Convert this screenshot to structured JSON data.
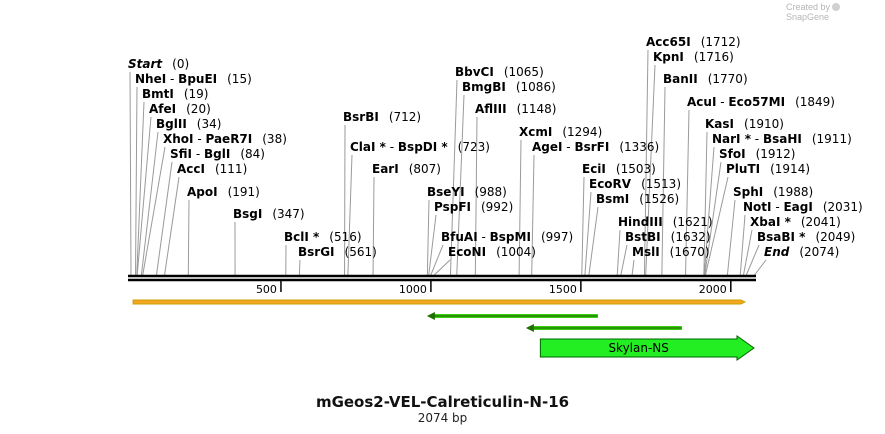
{
  "credit": {
    "created_by": "Created by",
    "brand": "SnapGene"
  },
  "title": "mGeos2-VEL-Calreticulin-N-16",
  "length_label": "2074 bp",
  "sequence_length": 2074,
  "ruler_ticks": [
    "500",
    "1000",
    "1500",
    "2000"
  ],
  "ruler_tick_values": [
    500,
    1000,
    1500,
    2000
  ],
  "colors": {
    "backbone": "#000000",
    "orf_outline": "#c8a000",
    "orf_fill": "#f5a623",
    "primer_fill": "#38d010",
    "primer_line": "#207000",
    "feature_fill": "#22ee22",
    "feature_outline": "#006400"
  },
  "enzymes": [
    {
      "name": "Start",
      "pos": "(0)",
      "site": 0,
      "italic": true
    },
    {
      "name": "NheI",
      "name2": "BpuEI",
      "pos": "(15)",
      "site": 15
    },
    {
      "name": "BmtI",
      "pos": "(19)",
      "site": 19
    },
    {
      "name": "AfeI",
      "pos": "(20)",
      "site": 20
    },
    {
      "name": "BglII",
      "pos": "(34)",
      "site": 34
    },
    {
      "name": "XhoI",
      "name2": "PaeR7I",
      "pos": "(38)",
      "site": 38
    },
    {
      "name": "SfiI",
      "name2": "BglI",
      "pos": "(84)",
      "site": 84
    },
    {
      "name": "AccI",
      "pos": "(111)",
      "site": 111
    },
    {
      "name": "ApoI",
      "pos": "(191)",
      "site": 191
    },
    {
      "name": "BsgI",
      "pos": "(347)",
      "site": 347
    },
    {
      "name": "BclI",
      "star": true,
      "pos": "(516)",
      "site": 516
    },
    {
      "name": "BsrGI",
      "pos": "(561)",
      "site": 561
    },
    {
      "name": "BsrBI",
      "pos": "(712)",
      "site": 712
    },
    {
      "name": "ClaI",
      "star": true,
      "name2": "BspDI",
      "star2": true,
      "pos": "(723)",
      "site": 723
    },
    {
      "name": "EarI",
      "pos": "(807)",
      "site": 807
    },
    {
      "name": "BbvCI",
      "pos": "(1065)",
      "site": 1065
    },
    {
      "name": "BmgBI",
      "pos": "(1086)",
      "site": 1086
    },
    {
      "name": "AflIII",
      "pos": "(1148)",
      "site": 1148
    },
    {
      "name": "BseYI",
      "pos": "(988)",
      "site": 988
    },
    {
      "name": "PspFI",
      "pos": "(992)",
      "site": 992
    },
    {
      "name": "BfuAI",
      "name2": "BspMI",
      "pos": "(997)",
      "site": 997
    },
    {
      "name": "EcoNI",
      "pos": "(1004)",
      "site": 1004
    },
    {
      "name": "XcmI",
      "pos": "(1294)",
      "site": 1294
    },
    {
      "name": "AgeI",
      "name2": "BsrFI",
      "pos": "(1336)",
      "site": 1336
    },
    {
      "name": "Acc65I",
      "pos": "(1712)",
      "site": 1712
    },
    {
      "name": "KpnI",
      "pos": "(1716)",
      "site": 1716
    },
    {
      "name": "BanII",
      "pos": "(1770)",
      "site": 1770
    },
    {
      "name": "EciI",
      "pos": "(1503)",
      "site": 1503
    },
    {
      "name": "EcoRV",
      "pos": "(1513)",
      "site": 1513
    },
    {
      "name": "BsmI",
      "pos": "(1526)",
      "site": 1526
    },
    {
      "name": "HindIII",
      "pos": "(1621)",
      "site": 1621
    },
    {
      "name": "BstBI",
      "pos": "(1632)",
      "site": 1632
    },
    {
      "name": "MslI",
      "pos": "(1670)",
      "site": 1670
    },
    {
      "name": "AcuI",
      "name2": "Eco57MI",
      "pos": "(1849)",
      "site": 1849
    },
    {
      "name": "KasI",
      "pos": "(1910)",
      "site": 1910
    },
    {
      "name": "NarI",
      "star": true,
      "name2": "BsaHI",
      "pos": "(1911)",
      "site": 1911
    },
    {
      "name": "SfoI",
      "pos": "(1912)",
      "site": 1912
    },
    {
      "name": "PluTI",
      "pos": "(1914)",
      "site": 1914
    },
    {
      "name": "SphI",
      "pos": "(1988)",
      "site": 1988
    },
    {
      "name": "NotI",
      "name2": "EagI",
      "pos": "(2031)",
      "site": 2031
    },
    {
      "name": "XbaI",
      "star": true,
      "pos": "(2041)",
      "site": 2041
    },
    {
      "name": "BsaBI",
      "star": true,
      "pos": "(2049)",
      "site": 2049
    },
    {
      "name": "End",
      "pos": "(2074)",
      "site": 2074,
      "italic": true
    }
  ],
  "features": [
    {
      "kind": "orf",
      "start": 7,
      "end": 2074,
      "direction": "forward"
    },
    {
      "kind": "primer",
      "start": 1000,
      "end": 1570,
      "direction": "reverse"
    },
    {
      "kind": "primer",
      "start": 1330,
      "end": 1850,
      "direction": "reverse"
    },
    {
      "kind": "feature",
      "label": "Skylan-NS",
      "start": 1355,
      "end": 2074,
      "direction": "forward"
    }
  ]
}
